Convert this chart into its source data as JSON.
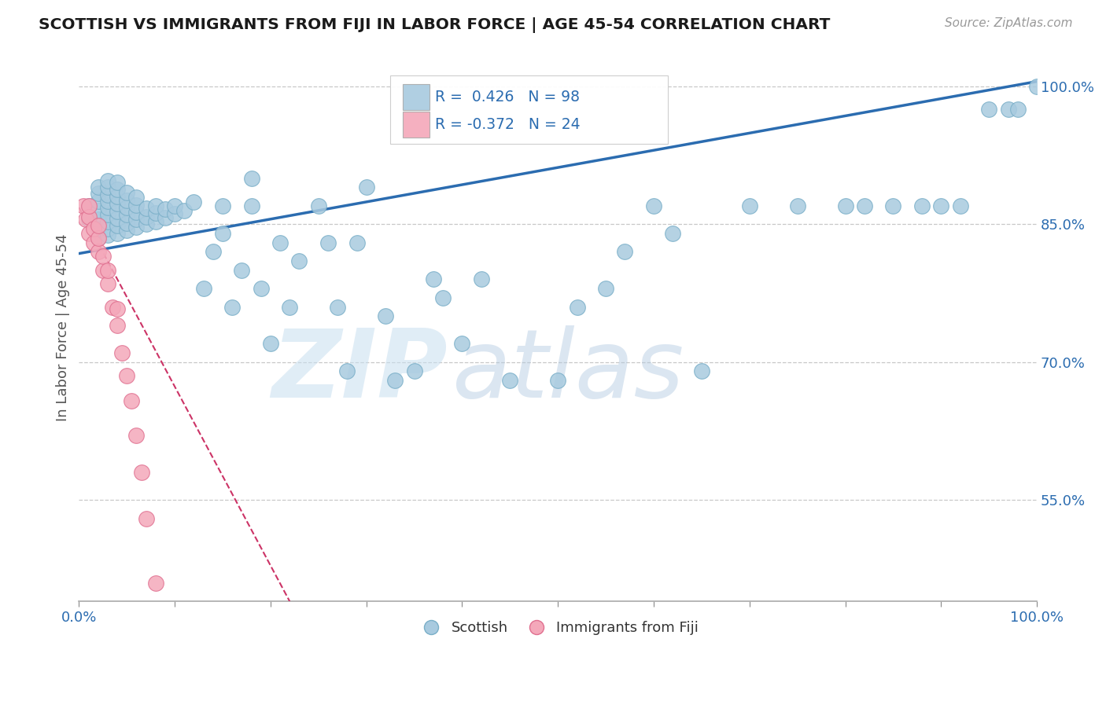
{
  "title": "SCOTTISH VS IMMIGRANTS FROM FIJI IN LABOR FORCE | AGE 45-54 CORRELATION CHART",
  "source_text": "Source: ZipAtlas.com",
  "ylabel": "In Labor Force | Age 45-54",
  "xlim": [
    0.0,
    1.0
  ],
  "ylim": [
    0.44,
    1.035
  ],
  "y_tick_labels": [
    "55.0%",
    "70.0%",
    "85.0%",
    "100.0%"
  ],
  "y_ticks": [
    0.55,
    0.7,
    0.85,
    1.0
  ],
  "scottish_R": 0.426,
  "scottish_N": 98,
  "fiji_R": -0.372,
  "fiji_N": 24,
  "blue_color": "#a8cadf",
  "blue_edge_color": "#7aafc8",
  "blue_line_color": "#2b6cb0",
  "pink_color": "#f4a8ba",
  "pink_edge_color": "#e07090",
  "pink_line_color": "#cc3366",
  "watermark_zip": "ZIP",
  "watermark_atlas": "atlas",
  "background_color": "#ffffff",
  "grid_color": "#c8c8c8",
  "blue_line_x0": 0.0,
  "blue_line_y0": 0.818,
  "blue_line_x1": 1.0,
  "blue_line_y1": 1.005,
  "pink_line_x0": 0.0,
  "pink_line_y0": 0.868,
  "pink_line_x1": 0.22,
  "pink_line_y1": 0.44
}
